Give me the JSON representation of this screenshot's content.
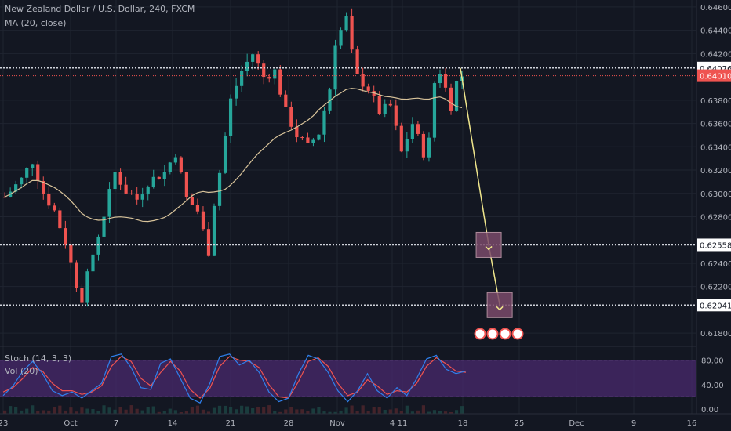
{
  "header": {
    "symbol_title": "New Zealand Dollar / U.S. Dollar, 240, FXCM",
    "ma_label": "MA (20, close)",
    "stoch_label": "Stoch (14, 3, 3)",
    "vol_label": "Vol (20)"
  },
  "colors": {
    "background": "#131722",
    "grid": "#1f2430",
    "up": "#26a69a",
    "down": "#ef5350",
    "ma": "#d8c39a",
    "stoch_k": "#2f80ed",
    "stoch_d": "#ef5350",
    "stoch_band": "#4a2a6e",
    "level_line": "#d1d4dc",
    "current_line": "#ef5350",
    "projection": "#f0e68c",
    "target_box": "#7a4a6a"
  },
  "chart_data": {
    "type": "candlestick",
    "y_ticks": [
      "0.64600",
      "0.64400",
      "0.64200",
      "0.63800",
      "0.63600",
      "0.63400",
      "0.63200",
      "0.63000",
      "0.62800",
      "0.62400",
      "0.62200",
      "0.61800"
    ],
    "y_range": [
      0.617,
      0.6466
    ],
    "x_ticks": [
      "23",
      "Oct",
      "7",
      "14",
      "21",
      "28",
      "Nov",
      "4",
      "11",
      "18",
      "25",
      "Dec",
      "9",
      "16"
    ],
    "levels": [
      {
        "price": 0.64076,
        "label": "0.64076"
      },
      {
        "price": 0.62558,
        "label": "0.62558"
      },
      {
        "price": 0.62041,
        "label": "0.62041"
      }
    ],
    "current_price": {
      "price": 0.6401,
      "label": "0.64010"
    },
    "projection": [
      {
        "date_index": 83,
        "price": 0.64076
      },
      {
        "date_index": 87,
        "price": 0.62558
      },
      {
        "date_index": 89,
        "price": 0.62041
      }
    ],
    "price_path": [
      {
        "i": 0,
        "close": 0.6297
      },
      {
        "i": 3,
        "close": 0.6312
      },
      {
        "i": 5,
        "close": 0.6328
      },
      {
        "i": 7,
        "close": 0.63
      },
      {
        "i": 9,
        "close": 0.6285
      },
      {
        "i": 11,
        "close": 0.6258
      },
      {
        "i": 13,
        "close": 0.6222
      },
      {
        "i": 14,
        "close": 0.621
      },
      {
        "i": 16,
        "close": 0.6248
      },
      {
        "i": 18,
        "close": 0.6282
      },
      {
        "i": 20,
        "close": 0.6318
      },
      {
        "i": 22,
        "close": 0.6302
      },
      {
        "i": 24,
        "close": 0.6295
      },
      {
        "i": 26,
        "close": 0.631
      },
      {
        "i": 29,
        "close": 0.6318
      },
      {
        "i": 31,
        "close": 0.6335
      },
      {
        "i": 33,
        "close": 0.6296
      },
      {
        "i": 35,
        "close": 0.6285
      },
      {
        "i": 37,
        "close": 0.625
      },
      {
        "i": 38,
        "close": 0.6292
      },
      {
        "i": 39,
        "close": 0.6318
      },
      {
        "i": 41,
        "close": 0.638
      },
      {
        "i": 43,
        "close": 0.6405
      },
      {
        "i": 45,
        "close": 0.642
      },
      {
        "i": 47,
        "close": 0.64
      },
      {
        "i": 49,
        "close": 0.6405
      },
      {
        "i": 51,
        "close": 0.637
      },
      {
        "i": 53,
        "close": 0.635
      },
      {
        "i": 55,
        "close": 0.634
      },
      {
        "i": 57,
        "close": 0.6352
      },
      {
        "i": 59,
        "close": 0.639
      },
      {
        "i": 60,
        "close": 0.643
      },
      {
        "i": 62,
        "close": 0.645
      },
      {
        "i": 63,
        "close": 0.642
      },
      {
        "i": 64,
        "close": 0.64
      },
      {
        "i": 66,
        "close": 0.639
      },
      {
        "i": 68,
        "close": 0.637
      },
      {
        "i": 70,
        "close": 0.6375
      },
      {
        "i": 72,
        "close": 0.6335
      },
      {
        "i": 74,
        "close": 0.636
      },
      {
        "i": 76,
        "close": 0.6335
      },
      {
        "i": 77,
        "close": 0.6345
      },
      {
        "i": 78,
        "close": 0.6395
      },
      {
        "i": 79,
        "close": 0.6405
      },
      {
        "i": 80,
        "close": 0.639
      },
      {
        "i": 81,
        "close": 0.6375
      },
      {
        "i": 82,
        "close": 0.6395
      },
      {
        "i": 83,
        "close": 0.6401
      }
    ],
    "stochastic": {
      "range": [
        0,
        100
      ],
      "ticks": [
        "80.00",
        "40.00",
        "0.00"
      ],
      "k": [
        22,
        38,
        62,
        78,
        58,
        30,
        22,
        28,
        18,
        30,
        42,
        86,
        90,
        68,
        35,
        32,
        75,
        82,
        50,
        18,
        10,
        42,
        86,
        90,
        72,
        80,
        60,
        28,
        12,
        18,
        58,
        88,
        82,
        60,
        30,
        12,
        30,
        58,
        30,
        18,
        35,
        22,
        50,
        82,
        88,
        65,
        58,
        62
      ],
      "d": [
        28,
        35,
        50,
        68,
        62,
        42,
        30,
        30,
        24,
        28,
        38,
        70,
        86,
        78,
        50,
        38,
        60,
        78,
        62,
        32,
        18,
        34,
        70,
        86,
        80,
        78,
        68,
        40,
        20,
        18,
        45,
        78,
        84,
        70,
        42,
        22,
        28,
        48,
        38,
        24,
        30,
        28,
        42,
        70,
        84,
        74,
        62,
        60
      ]
    }
  }
}
